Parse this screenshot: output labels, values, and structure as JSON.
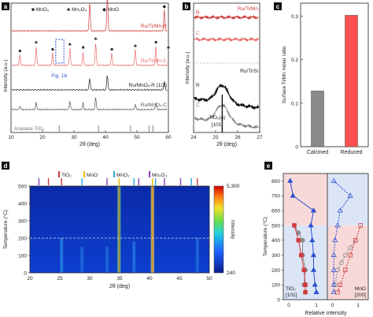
{
  "chart_data": [
    {
      "panel": "a",
      "type": "line",
      "xlabel": "2θ (deg)",
      "ylabel": "Intensity (a.u.)",
      "xlim": [
        10,
        60
      ],
      "xticks": [
        10,
        20,
        30,
        40,
        50,
        60
      ],
      "legend": [
        {
          "symbol": "■",
          "label": "MnO₂"
        },
        {
          "symbol": "♣",
          "label": "Mn₂O₃"
        },
        {
          "symbol": "◆",
          "label": "MnO"
        }
      ],
      "series": [
        {
          "name": "Ru/Ti/Mn-R",
          "color": "#d03a3a",
          "baseline": 0.8,
          "peaks": [
            [
              35.0,
              0.85
            ],
            [
              40.6,
              1.0
            ],
            [
              58.7,
              0.6
            ]
          ],
          "markers": [
            [
              35.0,
              "◆"
            ],
            [
              40.6,
              "◆"
            ],
            [
              58.7,
              "◆"
            ]
          ]
        },
        {
          "name": "Ru/Ti/Mn-C",
          "color": "#e86a6a",
          "baseline": 0.52,
          "peaks": [
            [
              12.8,
              0.3
            ],
            [
              18.0,
              0.55
            ],
            [
              23.2,
              0.35
            ],
            [
              28.7,
              0.5
            ],
            [
              32.9,
              0.4
            ],
            [
              36.9,
              0.65
            ],
            [
              42.0,
              0.35
            ],
            [
              49.5,
              0.45
            ],
            [
              56.0,
              0.55
            ],
            [
              60.0,
              0.4
            ]
          ],
          "markers": [
            [
              12.8,
              "■"
            ],
            [
              18.0,
              "♣"
            ],
            [
              23.2,
              "■"
            ],
            [
              28.7,
              "♣"
            ],
            [
              32.9,
              "■"
            ],
            [
              36.9,
              "♣"
            ],
            [
              42.0,
              "■"
            ],
            [
              49.5,
              "♣"
            ],
            [
              56.0,
              "■"
            ],
            [
              60.0,
              "♣"
            ]
          ]
        },
        {
          "name": "Ru/MnOₓ-R (1/2)",
          "color": "#222222",
          "baseline": 0.32,
          "peaks": [
            [
              35.0,
              0.35
            ],
            [
              40.6,
              0.45
            ],
            [
              58.7,
              0.25
            ]
          ]
        },
        {
          "name": "Ru/MnOₓ-C",
          "color": "#555555",
          "baseline": 0.16,
          "peaks": [
            [
              12.8,
              0.1
            ],
            [
              18.0,
              0.2
            ],
            [
              28.7,
              0.25
            ],
            [
              32.9,
              0.2
            ],
            [
              36.9,
              0.35
            ],
            [
              49.5,
              0.15
            ],
            [
              56.0,
              0.2
            ]
          ]
        }
      ],
      "reference": {
        "name": "Anatase TiO₂",
        "sticks": [
          25.3,
          37.8,
          48.0,
          53.9,
          55.1
        ]
      },
      "annotation": "Fig. 1b"
    },
    {
      "panel": "b",
      "type": "line",
      "xlabel": "2θ (deg)",
      "ylabel": "Intensity (a.u.)",
      "xlim": [
        24,
        27
      ],
      "xticks": [
        24,
        25,
        26,
        27
      ],
      "series": [
        {
          "name": "Ru/Ti/Mn",
          "label_short": "R",
          "color": "#d03a3a",
          "group": "top"
        },
        {
          "name": "Ru/Ti/Mn",
          "label_short": "C",
          "color": "#e86a6a",
          "group": "top"
        },
        {
          "name": "Ru/Ti/Si",
          "label_short": "R",
          "color": "#111111",
          "group": "bottom"
        },
        {
          "name": "Ru/Ti/Si",
          "label_short": "C",
          "color": "#808080",
          "group": "bottom"
        }
      ],
      "annotation": "TiO₂(a) [101]",
      "reference_x": 25.3
    },
    {
      "panel": "c",
      "type": "bar",
      "categories": [
        "Calcined",
        "Reduced"
      ],
      "values": [
        0.128,
        0.302
      ],
      "colors": [
        "#8a8a8a",
        "#ff5050"
      ],
      "ylabel": "Surface Ti/Mn molar ratio",
      "ylim": [
        0,
        0.33
      ],
      "yticks": [
        0,
        0.1,
        0.2,
        0.3
      ]
    },
    {
      "panel": "d",
      "type": "heatmap",
      "xlabel": "2θ (deg)",
      "ylabel": "Temperature (°C)",
      "xlim": [
        20,
        50
      ],
      "xticks": [
        20,
        25,
        30,
        35,
        40,
        45,
        50
      ],
      "ylim": [
        0,
        500
      ],
      "yticks": [
        0,
        100,
        200,
        300,
        400,
        500
      ],
      "colorbar": {
        "label": "Intensity",
        "min": 240,
        "max": 5300
      },
      "dashed_line_temperature": 200,
      "reference_labels": [
        {
          "text": "TiO₂",
          "color": "#d03a3a"
        },
        {
          "text": "MnO",
          "color": "#e8b800"
        },
        {
          "text": "MnO₂",
          "color": "#2aa7d8"
        },
        {
          "text": "Mn₂O₃",
          "color": "#8a3ab9"
        }
      ],
      "ticks_top": [
        {
          "x": 21.5,
          "color": "#8a3ab9"
        },
        {
          "x": 23.1,
          "color": "#d03a3a"
        },
        {
          "x": 25.3,
          "color": "#d03a3a"
        },
        {
          "x": 28.7,
          "color": "#2aa7d8"
        },
        {
          "x": 32.9,
          "color": "#8a3ab9"
        },
        {
          "x": 34.9,
          "color": "#e8b800"
        },
        {
          "x": 37.4,
          "color": "#2aa7d8"
        },
        {
          "x": 38.2,
          "color": "#8a3ab9"
        },
        {
          "x": 40.5,
          "color": "#e8b800"
        },
        {
          "x": 41.0,
          "color": "#2aa7d8"
        },
        {
          "x": 42.5,
          "color": "#8a3ab9"
        },
        {
          "x": 45.2,
          "color": "#8a3ab9"
        },
        {
          "x": 47.0,
          "color": "#2aa7d8"
        },
        {
          "x": 48.0,
          "color": "#d03a3a"
        }
      ],
      "bright_lines": [
        {
          "x": 34.9,
          "tmin": 0,
          "tmax": 500,
          "strength": 0.9
        },
        {
          "x": 40.5,
          "tmin": 0,
          "tmax": 500,
          "strength": 1.0
        },
        {
          "x": 25.3,
          "tmin": 0,
          "tmax": 200,
          "strength": 0.45
        },
        {
          "x": 37.4,
          "tmin": 0,
          "tmax": 180,
          "strength": 0.35
        },
        {
          "x": 28.7,
          "tmin": 0,
          "tmax": 150,
          "strength": 0.25
        },
        {
          "x": 32.9,
          "tmin": 0,
          "tmax": 150,
          "strength": 0.25
        },
        {
          "x": 48.0,
          "tmin": 0,
          "tmax": 200,
          "strength": 0.25
        }
      ]
    },
    {
      "panel": "e",
      "type": "scatter",
      "xlabel": "Relative intensity",
      "ylabel": "Temperature (°C)",
      "ylim": [
        0,
        850
      ],
      "yticks": [
        0,
        100,
        200,
        300,
        400,
        500,
        600,
        700,
        800
      ],
      "xticks_left": [
        0,
        1
      ],
      "xticks_right": [
        0,
        1
      ],
      "left_label": "TiO₂ [101]",
      "right_label": "MnO [200]",
      "left": {
        "blue_triangle": [
          [
            0.05,
            800
          ],
          [
            0.15,
            700
          ],
          [
            0.9,
            600
          ],
          [
            0.8,
            500
          ],
          [
            0.85,
            400
          ],
          [
            0.9,
            300
          ],
          [
            0.9,
            200
          ],
          [
            0.95,
            100
          ],
          [
            1.0,
            50
          ]
        ],
        "red_square": [
          [
            0.2,
            500
          ],
          [
            0.35,
            400
          ],
          [
            0.45,
            300
          ],
          [
            0.55,
            200
          ],
          [
            0.6,
            100
          ],
          [
            0.6,
            50
          ]
        ],
        "gray_circle": [
          [
            0.2,
            500
          ],
          [
            0.35,
            450
          ],
          [
            0.5,
            400
          ],
          [
            0.5,
            300
          ],
          [
            0.6,
            200
          ],
          [
            0.55,
            100
          ]
        ]
      },
      "right": {
        "blue_triangle_open": [
          [
            0.05,
            800
          ],
          [
            0.7,
            700
          ],
          [
            0.3,
            600
          ],
          [
            0.2,
            500
          ],
          [
            0.1,
            400
          ],
          [
            0.05,
            300
          ],
          [
            0.05,
            200
          ],
          [
            0.05,
            100
          ],
          [
            0.05,
            50
          ]
        ],
        "red_square_open": [
          [
            1.1,
            500
          ],
          [
            0.9,
            400
          ],
          [
            0.7,
            300
          ],
          [
            0.5,
            200
          ],
          [
            0.3,
            100
          ],
          [
            0.2,
            50
          ]
        ],
        "gray_circle_open": [
          [
            0.9,
            400
          ],
          [
            0.7,
            350
          ],
          [
            0.5,
            300
          ],
          [
            0.35,
            250
          ],
          [
            0.2,
            200
          ],
          [
            0.1,
            100
          ]
        ]
      }
    }
  ],
  "panel_labels": [
    "a",
    "b",
    "c",
    "d",
    "e"
  ],
  "colors": {
    "red": "#d03a3a",
    "blue": "#2b4fd0",
    "gray": "#8a8a8a"
  }
}
